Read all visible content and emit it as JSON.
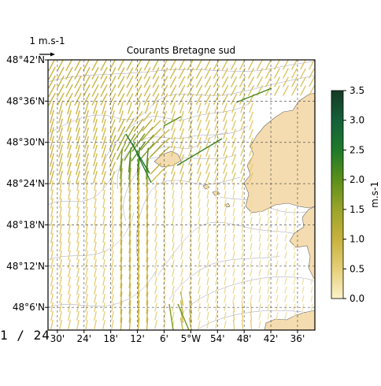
{
  "chart_data": {
    "type": "quiver",
    "title": "Courants Bretagne sud",
    "reference_arrow": {
      "label": "1 m.s-1",
      "value": 1.0
    },
    "xlim": [
      -4.52,
      -4.58
    ],
    "xlim_note": "",
    "x_ticks": [
      {
        "value": -5.5,
        "label": "30'"
      },
      {
        "value": -5.4,
        "label": "24'"
      },
      {
        "value": -5.3,
        "label": "18'"
      },
      {
        "value": -5.2,
        "label": "12'"
      },
      {
        "value": -5.1,
        "label": "6'"
      },
      {
        "value": -5.0,
        "label": "5°W"
      },
      {
        "value": -4.9,
        "label": "54'"
      },
      {
        "value": -4.8,
        "label": "48'"
      },
      {
        "value": -4.7,
        "label": "42'"
      },
      {
        "value": -4.6,
        "label": "36'"
      }
    ],
    "y_ticks": [
      {
        "value": 48.7,
        "label": "48°42'N"
      },
      {
        "value": 48.6,
        "label": "48°36'N"
      },
      {
        "value": 48.5,
        "label": "48°30'N"
      },
      {
        "value": 48.4,
        "label": "48°24'N"
      },
      {
        "value": 48.3,
        "label": "48°18'N"
      },
      {
        "value": 48.2,
        "label": "48°12'N"
      },
      {
        "value": 48.1,
        "label": "48°6'N"
      }
    ],
    "grid": true,
    "colorbar": {
      "label": "m.s-1",
      "range": [
        0.0,
        3.5
      ],
      "ticks": [
        "0.0",
        "0.5",
        "1.0",
        "1.5",
        "2.0",
        "2.5",
        "3.0",
        "3.5"
      ],
      "colors": [
        "#fbf2c9",
        "#e5cf78",
        "#c7b23e",
        "#9aa42a",
        "#5b8f1a",
        "#1e7a2a",
        "#14603a",
        "#163b24"
      ]
    },
    "colors": {
      "land": "#f5dcb0",
      "coast": "#666666",
      "bathymetry": "#8a8aa8",
      "grid": "#555555"
    }
  },
  "page_counter": {
    "current": "1",
    "separator": "/",
    "total": "24"
  }
}
